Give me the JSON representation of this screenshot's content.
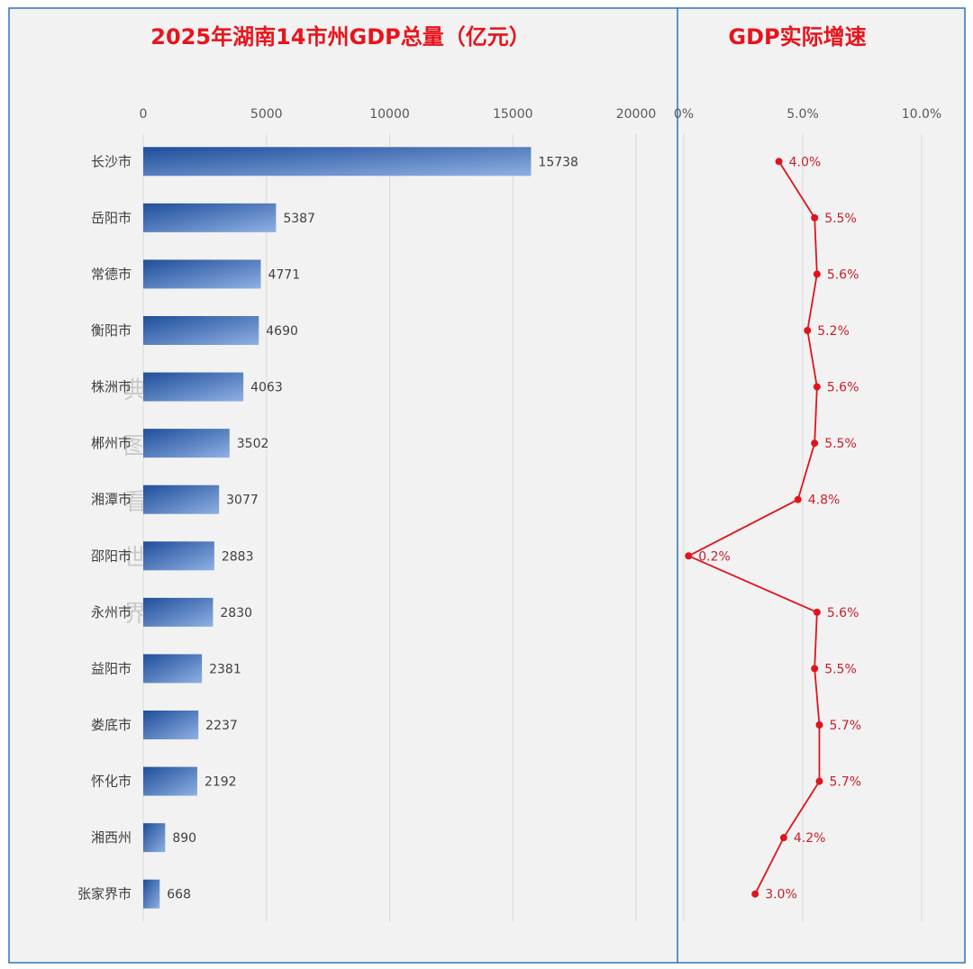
{
  "colors": {
    "panel_bg": "#f2f2f2",
    "frame_border": "#2e75b6",
    "title_red": "#e8141c",
    "bar_dark": "#1f4e9a",
    "bar_light": "#8fb0e3",
    "line_red": "#e0141c",
    "grid": "#d9d9d9"
  },
  "chart_data": [
    {
      "type": "bar",
      "orientation": "horizontal",
      "title": "2025年湖南14市州GDP总量（亿元）",
      "xlim": [
        0,
        20000
      ],
      "xticks": [
        "0",
        "5000",
        "10000",
        "15000",
        "20000"
      ],
      "grid": true,
      "categories": [
        "长沙市",
        "岳阳市",
        "常德市",
        "衡阳市",
        "株洲市",
        "郴州市",
        "湘潭市",
        "邵阳市",
        "永州市",
        "益阳市",
        "娄底市",
        "怀化市",
        "湘西州",
        "张家界市"
      ],
      "values": [
        15738,
        5387,
        4771,
        4690,
        4063,
        3502,
        3077,
        2883,
        2830,
        2381,
        2237,
        2192,
        890,
        668
      ],
      "value_labels": [
        "15738",
        "5387",
        "4771",
        "4690",
        "4063",
        "3502",
        "3077",
        "2883",
        "2830",
        "2381",
        "2237",
        "2192",
        "890",
        "668"
      ]
    },
    {
      "type": "line",
      "title": "GDP实际增速",
      "xlim": [
        0,
        10
      ],
      "xticks": [
        "0%",
        "5.0%",
        "10.0%"
      ],
      "grid": true,
      "categories": [
        "长沙市",
        "岳阳市",
        "常德市",
        "衡阳市",
        "株洲市",
        "郴州市",
        "湘潭市",
        "邵阳市",
        "永州市",
        "益阳市",
        "娄底市",
        "怀化市",
        "湘西州",
        "张家界市"
      ],
      "values": [
        4.0,
        5.5,
        5.6,
        5.2,
        5.6,
        5.5,
        4.8,
        0.2,
        5.6,
        5.5,
        5.7,
        5.7,
        4.2,
        3.0
      ],
      "value_labels": [
        "4.0%",
        "5.5%",
        "5.6%",
        "5.2%",
        "5.6%",
        "5.5%",
        "4.8%",
        "0.2%",
        "5.6%",
        "5.5%",
        "5.7%",
        "5.7%",
        "4.2%",
        "3.0%"
      ]
    }
  ],
  "watermark": [
    "典",
    "图",
    "看",
    "世",
    "界"
  ]
}
